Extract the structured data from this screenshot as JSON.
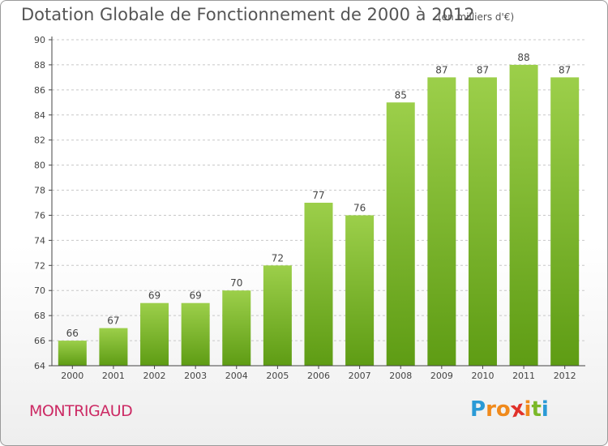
{
  "colors": {
    "bar_light": "#9ccf4a",
    "bar_dark": "#5e9c14",
    "axis": "#444444",
    "grid": "#c8c8c8",
    "label": "#444444",
    "commune": "#cc2a64"
  },
  "chart_data": {
    "type": "bar",
    "title": "Dotation Globale de Fonctionnement de 2000 à 2012",
    "subtitle": "(en milliers d'€)",
    "xlabel": "",
    "ylabel": "",
    "ylim": [
      64,
      90
    ],
    "yticks": [
      64,
      66,
      68,
      70,
      72,
      74,
      76,
      78,
      80,
      82,
      84,
      86,
      88,
      90
    ],
    "grid": true,
    "categories": [
      "2000",
      "2001",
      "2002",
      "2003",
      "2004",
      "2005",
      "2006",
      "2007",
      "2008",
      "2009",
      "2010",
      "2011",
      "2012"
    ],
    "values": [
      66,
      67,
      69,
      69,
      70,
      72,
      77,
      76,
      85,
      87,
      87,
      88,
      87
    ]
  },
  "footer": {
    "commune": "MONTRIGAUD",
    "logo_letters": [
      "P",
      "r",
      "o",
      "x",
      "i",
      "t",
      "i"
    ],
    "logo_colors": [
      "#2a9ad6",
      "#f08a1c",
      "#f08a1c",
      "#e0312a",
      "#f08a1c",
      "#7ab828",
      "#2a9ad6"
    ]
  }
}
